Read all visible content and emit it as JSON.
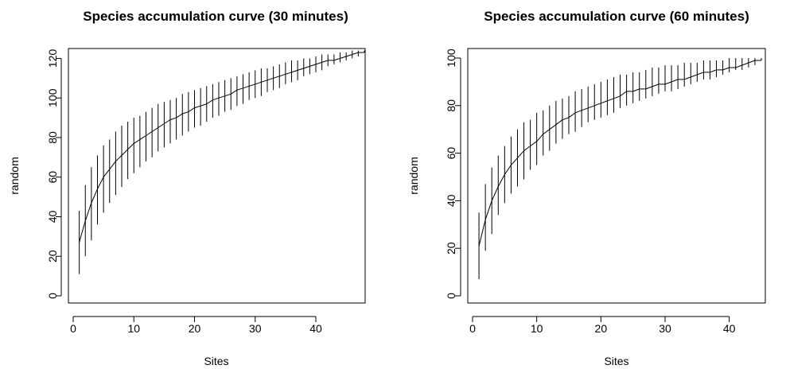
{
  "chart_data": [
    {
      "type": "line",
      "title": "Species accumulation curve (30 minutes)",
      "xlabel": "Sites",
      "ylabel": "random",
      "xlim": [
        0,
        48
      ],
      "ylim": [
        0,
        125
      ],
      "xticks": [
        "0",
        "10",
        "20",
        "30",
        "40"
      ],
      "yticks": [
        "0",
        "20",
        "40",
        "60",
        "80",
        "100",
        "120"
      ],
      "grid": false,
      "error_bars": "vertical lines (± spread) at each site",
      "series": [
        {
          "x": [
            1,
            2,
            3,
            4,
            5,
            6,
            7,
            8,
            9,
            10,
            11,
            12,
            13,
            14,
            15,
            16,
            17,
            18,
            19,
            20,
            21,
            22,
            23,
            24,
            25,
            26,
            27,
            28,
            29,
            30,
            31,
            32,
            33,
            34,
            35,
            36,
            37,
            38,
            39,
            40,
            41,
            42,
            43,
            44,
            45,
            46,
            47,
            48
          ],
          "y": [
            27,
            38,
            47,
            54,
            60,
            64,
            68,
            71,
            74,
            77,
            79,
            81,
            83,
            85,
            87,
            89,
            90,
            92,
            93,
            95,
            96,
            97,
            99,
            100,
            101,
            102,
            104,
            105,
            106,
            107,
            108,
            109,
            110,
            111,
            112,
            113,
            114,
            115,
            116,
            117,
            118,
            119,
            119,
            120,
            121,
            122,
            123,
            123
          ],
          "lower": [
            11,
            20,
            28,
            36,
            42,
            47,
            51,
            55,
            59,
            62,
            65,
            68,
            70,
            73,
            75,
            77,
            79,
            81,
            83,
            85,
            86,
            88,
            90,
            91,
            93,
            94,
            96,
            97,
            99,
            100,
            101,
            103,
            104,
            105,
            107,
            108,
            109,
            111,
            112,
            113,
            114,
            116,
            117,
            118,
            119,
            120,
            121,
            123
          ],
          "upper": [
            43,
            56,
            65,
            71,
            76,
            79,
            83,
            86,
            88,
            90,
            91,
            93,
            95,
            97,
            98,
            99,
            100,
            102,
            103,
            104,
            105,
            106,
            107,
            108,
            109,
            110,
            111,
            112,
            113,
            114,
            115,
            115,
            116,
            117,
            118,
            119,
            119,
            120,
            120,
            121,
            122,
            122,
            122,
            123,
            123,
            124,
            124,
            124
          ]
        }
      ]
    },
    {
      "type": "line",
      "title": "Species accumulation curve (60 minutes)",
      "xlabel": "Sites",
      "ylabel": "random",
      "xlim": [
        0,
        45
      ],
      "ylim": [
        0,
        100
      ],
      "xticks": [
        "0",
        "10",
        "20",
        "30",
        "40"
      ],
      "yticks": [
        "0",
        "20",
        "40",
        "60",
        "80",
        "100"
      ],
      "grid": false,
      "error_bars": "vertical lines (± spread) at each site",
      "series": [
        {
          "x": [
            1,
            2,
            3,
            4,
            5,
            6,
            7,
            8,
            9,
            10,
            11,
            12,
            13,
            14,
            15,
            16,
            17,
            18,
            19,
            20,
            21,
            22,
            23,
            24,
            25,
            26,
            27,
            28,
            29,
            30,
            31,
            32,
            33,
            34,
            35,
            36,
            37,
            38,
            39,
            40,
            41,
            42,
            43,
            44,
            45
          ],
          "y": [
            21,
            32,
            40,
            46,
            51,
            55,
            58,
            61,
            63,
            65,
            68,
            70,
            72,
            74,
            75,
            77,
            78,
            79,
            80,
            81,
            82,
            83,
            84,
            86,
            86,
            87,
            87,
            88,
            89,
            89,
            90,
            91,
            91,
            92,
            93,
            94,
            94,
            95,
            95,
            96,
            96,
            97,
            98,
            99,
            99
          ],
          "lower": [
            7,
            19,
            26,
            34,
            39,
            43,
            46,
            49,
            53,
            55,
            59,
            61,
            64,
            66,
            68,
            69,
            71,
            73,
            74,
            75,
            76,
            77,
            79,
            80,
            81,
            82,
            83,
            84,
            85,
            86,
            86,
            87,
            88,
            89,
            90,
            91,
            91,
            92,
            93,
            94,
            95,
            95,
            96,
            97,
            99
          ],
          "upper": [
            35,
            47,
            54,
            59,
            63,
            67,
            70,
            73,
            74,
            77,
            78,
            80,
            82,
            83,
            84,
            86,
            87,
            88,
            89,
            90,
            91,
            92,
            93,
            93,
            94,
            94,
            95,
            96,
            96,
            97,
            97,
            97,
            98,
            98,
            98,
            99,
            99,
            99,
            99,
            100,
            100,
            100,
            100,
            100,
            100
          ]
        }
      ]
    }
  ]
}
